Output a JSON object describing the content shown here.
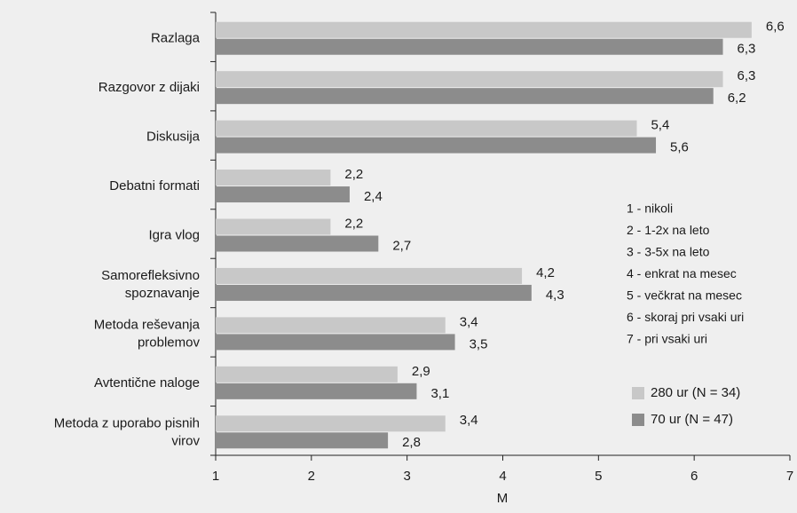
{
  "chart_data": {
    "type": "bar",
    "orientation": "horizontal",
    "categories": [
      "Razlaga",
      "Razgovor z dijaki",
      "Diskusija",
      "Debatni formati",
      "Igra vlog",
      "Samorefleksivno spoznavanje",
      "Metoda reševanja problemov",
      "Avtentične naloge",
      "Metoda z uporabo pisnih virov"
    ],
    "series": [
      {
        "name": "280 ur (N = 34)",
        "color": "#c8c8c8",
        "values": [
          6.6,
          6.3,
          5.4,
          2.2,
          2.2,
          4.2,
          3.4,
          2.9,
          3.4
        ],
        "value_labels": [
          "6,6",
          "6,3",
          "5,4",
          "2,2",
          "2,2",
          "4,2",
          "3,4",
          "2,9",
          "3,4"
        ]
      },
      {
        "name": "70 ur (N = 47)",
        "color": "#8c8c8c",
        "values": [
          6.3,
          6.2,
          5.6,
          2.4,
          2.7,
          4.3,
          3.5,
          3.1,
          2.8
        ],
        "value_labels": [
          "6,3",
          "6,2",
          "5,6",
          "2,4",
          "2,7",
          "4,3",
          "3,5",
          "3,1",
          "2,8"
        ]
      }
    ],
    "xlabel": "M",
    "xlim": [
      1,
      7
    ],
    "xticks": [
      1,
      2,
      3,
      4,
      5,
      6,
      7
    ],
    "annotations": [
      "1 - nikoli",
      "2 - 1-2x na leto",
      "3 - 3-5x na leto",
      "4 - enkrat na mesec",
      "5 - večkrat na mesec",
      "6 - skoraj pri vsaki uri",
      "7 - pri vsaki uri"
    ],
    "legend": "right"
  }
}
